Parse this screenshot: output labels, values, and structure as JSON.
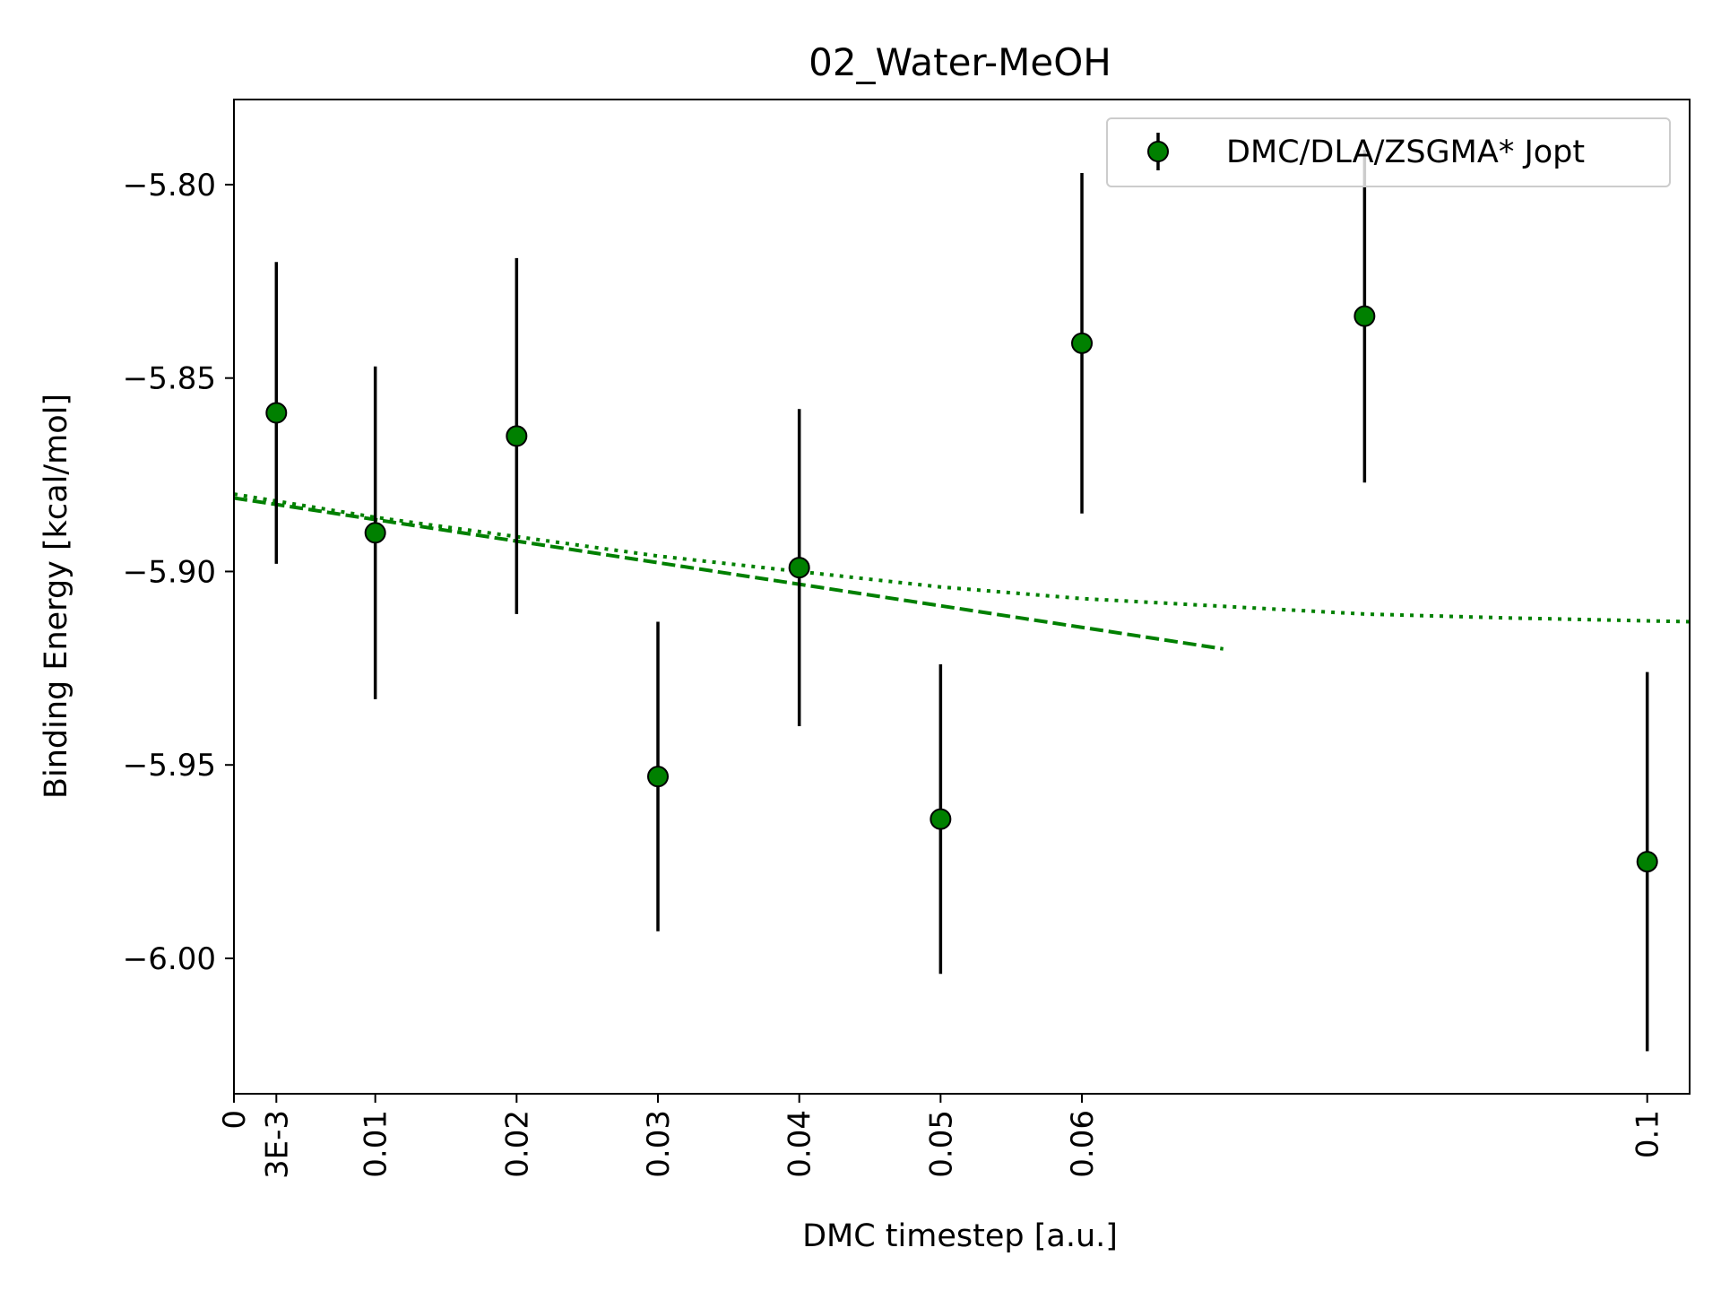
{
  "chart_data": {
    "type": "scatter",
    "title": "02_Water-MeOH",
    "xlabel": "DMC timestep [a.u.]",
    "ylabel": "Binding Energy [kcal/mol]",
    "xlim": [
      0,
      0.103
    ],
    "ylim": [
      -6.035,
      -5.778
    ],
    "x_ticks": [
      {
        "value": 0,
        "label": "0"
      },
      {
        "value": 0.003,
        "label": "3E-3"
      },
      {
        "value": 0.01,
        "label": "0.01"
      },
      {
        "value": 0.02,
        "label": "0.02"
      },
      {
        "value": 0.03,
        "label": "0.03"
      },
      {
        "value": 0.04,
        "label": "0.04"
      },
      {
        "value": 0.05,
        "label": "0.05"
      },
      {
        "value": 0.06,
        "label": "0.06"
      },
      {
        "value": 0.1,
        "label": "0.1"
      }
    ],
    "y_ticks": [
      {
        "value": -5.8,
        "label": "−5.80"
      },
      {
        "value": -5.85,
        "label": "−5.85"
      },
      {
        "value": -5.9,
        "label": "−5.90"
      },
      {
        "value": -5.95,
        "label": "−5.95"
      },
      {
        "value": -6.0,
        "label": "−6.00"
      }
    ],
    "grid": false,
    "legend": {
      "position": "top-right"
    },
    "series": [
      {
        "name": "DMC/DLA/ZSGMA* Jopt",
        "color": "#008000",
        "points": [
          {
            "x": 0.003,
            "y": -5.859,
            "err": 0.039
          },
          {
            "x": 0.01,
            "y": -5.89,
            "err": 0.043
          },
          {
            "x": 0.02,
            "y": -5.865,
            "err": 0.046
          },
          {
            "x": 0.03,
            "y": -5.953,
            "err": 0.04
          },
          {
            "x": 0.04,
            "y": -5.899,
            "err": 0.041
          },
          {
            "x": 0.05,
            "y": -5.964,
            "err": 0.04
          },
          {
            "x": 0.06,
            "y": -5.841,
            "err": 0.044
          },
          {
            "x": 0.08,
            "y": -5.834,
            "err": 0.043
          },
          {
            "x": 0.1,
            "y": -5.975,
            "err": 0.049
          }
        ]
      }
    ],
    "fits": [
      {
        "style": "dashed",
        "color": "#008000",
        "x": [
          0,
          0.07
        ],
        "y": [
          -5.881,
          -5.92
        ]
      },
      {
        "style": "dotted",
        "color": "#008000",
        "x": [
          0,
          0.01,
          0.02,
          0.03,
          0.04,
          0.05,
          0.06,
          0.07,
          0.08,
          0.09,
          0.103
        ],
        "y": [
          -5.88,
          -5.886,
          -5.891,
          -5.896,
          -5.9,
          -5.904,
          -5.907,
          -5.909,
          -5.911,
          -5.912,
          -5.913
        ]
      }
    ]
  }
}
